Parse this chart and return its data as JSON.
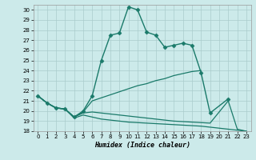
{
  "xlabel": "Humidex (Indice chaleur)",
  "xlim": [
    -0.5,
    23.5
  ],
  "ylim": [
    18,
    30.5
  ],
  "yticks": [
    18,
    19,
    20,
    21,
    22,
    23,
    24,
    25,
    26,
    27,
    28,
    29,
    30
  ],
  "xticks": [
    0,
    1,
    2,
    3,
    4,
    5,
    6,
    7,
    8,
    9,
    10,
    11,
    12,
    13,
    14,
    15,
    16,
    17,
    18,
    19,
    20,
    21,
    22,
    23
  ],
  "bg_color": "#cceaea",
  "grid_color": "#aacccc",
  "line_color": "#1a7a6a",
  "lines": [
    {
      "x": [
        0,
        1,
        2,
        3,
        4,
        5,
        6,
        7,
        8,
        9,
        10,
        11,
        12,
        13,
        14,
        15,
        16,
        17,
        18,
        19,
        21
      ],
      "y": [
        21.5,
        20.8,
        20.3,
        20.2,
        19.4,
        20.0,
        21.5,
        25.0,
        27.5,
        27.7,
        30.3,
        30.0,
        27.8,
        27.5,
        26.3,
        26.5,
        26.7,
        26.5,
        23.8,
        19.8,
        21.2
      ],
      "marker": "D",
      "markersize": 2.5,
      "linewidth": 1.0
    },
    {
      "x": [
        0,
        1,
        2,
        3,
        4,
        5,
        6,
        7,
        8,
        9,
        10,
        11,
        12,
        13,
        14,
        15,
        16,
        17,
        18
      ],
      "y": [
        21.5,
        20.8,
        20.3,
        20.2,
        19.4,
        19.9,
        21.0,
        21.3,
        21.6,
        21.9,
        22.2,
        22.5,
        22.7,
        23.0,
        23.2,
        23.5,
        23.7,
        23.9,
        24.0
      ],
      "marker": null,
      "markersize": 0,
      "linewidth": 0.9
    },
    {
      "x": [
        0,
        1,
        2,
        3,
        4,
        5,
        6,
        7,
        8,
        9,
        10,
        11,
        12,
        13,
        14,
        15,
        16,
        17,
        18,
        19,
        20,
        21,
        22,
        23
      ],
      "y": [
        21.5,
        20.8,
        20.3,
        20.2,
        19.3,
        19.6,
        19.4,
        19.2,
        19.1,
        19.0,
        18.9,
        18.85,
        18.8,
        18.75,
        18.7,
        18.65,
        18.6,
        18.55,
        18.5,
        18.4,
        18.3,
        18.2,
        18.1,
        18.0
      ],
      "marker": null,
      "markersize": 0,
      "linewidth": 0.9
    },
    {
      "x": [
        0,
        1,
        2,
        3,
        4,
        5,
        6,
        7,
        8,
        9,
        10,
        11,
        12,
        13,
        14,
        15,
        16,
        17,
        18,
        19,
        20,
        21,
        22,
        23
      ],
      "y": [
        21.5,
        20.8,
        20.3,
        20.2,
        19.4,
        19.8,
        19.9,
        19.8,
        19.7,
        19.6,
        19.5,
        19.4,
        19.3,
        19.2,
        19.1,
        19.0,
        18.95,
        18.9,
        18.85,
        18.8,
        19.9,
        21.0,
        18.2,
        18.0
      ],
      "marker": null,
      "markersize": 0,
      "linewidth": 0.9
    }
  ]
}
